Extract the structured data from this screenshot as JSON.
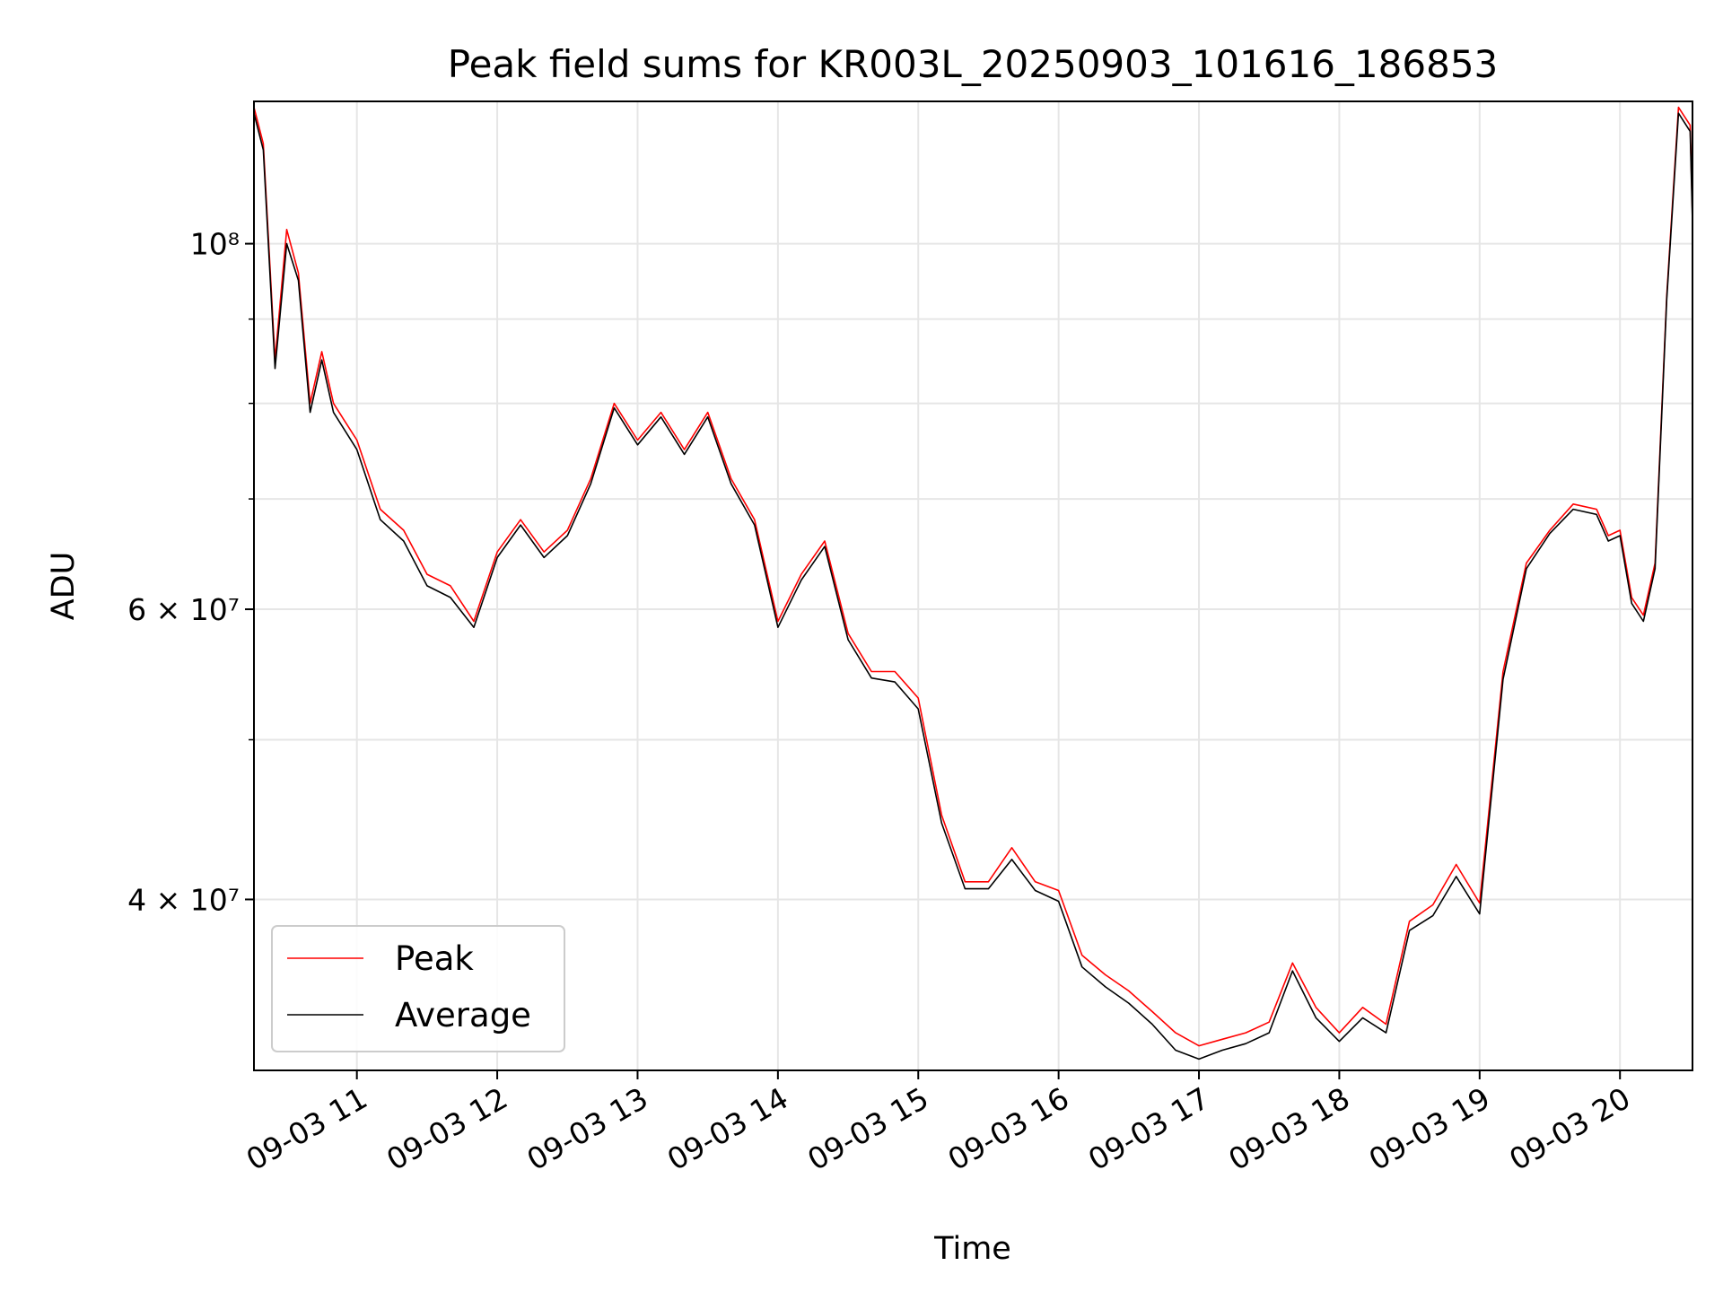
{
  "chart_data": {
    "type": "line",
    "title": "Peak field sums for KR003L_20250903_101616_186853",
    "xlabel": "Time",
    "ylabel": "ADU",
    "yscale": "log",
    "ylim": [
      31500000,
      122000000
    ],
    "xlim": [
      "09-03 10:16",
      "09-03 20:31"
    ],
    "grid": true,
    "legend_position": "lower-left",
    "x_tick_labels": [
      "09-03 11",
      "09-03 12",
      "09-03 13",
      "09-03 14",
      "09-03 15",
      "09-03 16",
      "09-03 17",
      "09-03 18",
      "09-03 19",
      "09-03 20"
    ],
    "y_tick_labels": [
      {
        "value": 40000000,
        "label": "4 × 10⁷"
      },
      {
        "value": 60000000,
        "label": "6 × 10⁷"
      },
      {
        "value": 100000000,
        "label": "10⁸"
      }
    ],
    "x": [
      "09-03 10:16",
      "09-03 10:20",
      "09-03 10:25",
      "09-03 10:30",
      "09-03 10:35",
      "09-03 10:40",
      "09-03 10:45",
      "09-03 10:50",
      "09-03 11:00",
      "09-03 11:10",
      "09-03 11:20",
      "09-03 11:30",
      "09-03 11:40",
      "09-03 11:50",
      "09-03 12:00",
      "09-03 12:10",
      "09-03 12:20",
      "09-03 12:30",
      "09-03 12:40",
      "09-03 12:50",
      "09-03 13:00",
      "09-03 13:10",
      "09-03 13:20",
      "09-03 13:30",
      "09-03 13:40",
      "09-03 13:50",
      "09-03 14:00",
      "09-03 14:10",
      "09-03 14:20",
      "09-03 14:30",
      "09-03 14:40",
      "09-03 14:50",
      "09-03 15:00",
      "09-03 15:10",
      "09-03 15:20",
      "09-03 15:30",
      "09-03 15:40",
      "09-03 15:50",
      "09-03 16:00",
      "09-03 16:10",
      "09-03 16:20",
      "09-03 16:30",
      "09-03 16:40",
      "09-03 16:50",
      "09-03 17:00",
      "09-03 17:10",
      "09-03 17:20",
      "09-03 17:30",
      "09-03 17:40",
      "09-03 17:50",
      "09-03 18:00",
      "09-03 18:10",
      "09-03 18:20",
      "09-03 18:30",
      "09-03 18:40",
      "09-03 18:50",
      "09-03 19:00",
      "09-03 19:10",
      "09-03 19:20",
      "09-03 19:30",
      "09-03 19:40",
      "09-03 19:50",
      "09-03 19:55",
      "09-03 20:00",
      "09-03 20:05",
      "09-03 20:10",
      "09-03 20:15",
      "09-03 20:20",
      "09-03 20:25",
      "09-03 20:30",
      "09-03 20:31"
    ],
    "series": [
      {
        "name": "Peak",
        "color": "#ff0000",
        "values": [
          121000000,
          115000000,
          85000000,
          102000000,
          96000000,
          80000000,
          86000000,
          80000000,
          76000000,
          69000000,
          67000000,
          63000000,
          62000000,
          59000000,
          65000000,
          68000000,
          65000000,
          67000000,
          72000000,
          80000000,
          76000000,
          79000000,
          75000000,
          79000000,
          72000000,
          68000000,
          59000000,
          63000000,
          66000000,
          58000000,
          55000000,
          55000000,
          53000000,
          45000000,
          41000000,
          41000000,
          43000000,
          41000000,
          40500000,
          37000000,
          36000000,
          35200000,
          34200000,
          33200000,
          32600000,
          32900000,
          33200000,
          33700000,
          36600000,
          34400000,
          33200000,
          34400000,
          33600000,
          38800000,
          39700000,
          42000000,
          39800000,
          55000000,
          64000000,
          67000000,
          69500000,
          69000000,
          66500000,
          67000000,
          61000000,
          59500000,
          64000000,
          93000000,
          121000000,
          118000000,
          104000000
        ]
      },
      {
        "name": "Average",
        "color": "#000000",
        "values": [
          120000000,
          114000000,
          84000000,
          100000000,
          95000000,
          79000000,
          85000000,
          79000000,
          75000000,
          68000000,
          66000000,
          62000000,
          61000000,
          58500000,
          64500000,
          67500000,
          64500000,
          66500000,
          71500000,
          79500000,
          75500000,
          78500000,
          74500000,
          78500000,
          71500000,
          67500000,
          58500000,
          62500000,
          65500000,
          57500000,
          54500000,
          54200000,
          52200000,
          44500000,
          40600000,
          40600000,
          42300000,
          40500000,
          39900000,
          36400000,
          35400000,
          34600000,
          33600000,
          32400000,
          32000000,
          32400000,
          32700000,
          33200000,
          36200000,
          33900000,
          32800000,
          33900000,
          33200000,
          38300000,
          39100000,
          41300000,
          39200000,
          54400000,
          63500000,
          66700000,
          69000000,
          68500000,
          66000000,
          66500000,
          60500000,
          59000000,
          63500000,
          92500000,
          120000000,
          117000000,
          103000000
        ]
      }
    ]
  }
}
